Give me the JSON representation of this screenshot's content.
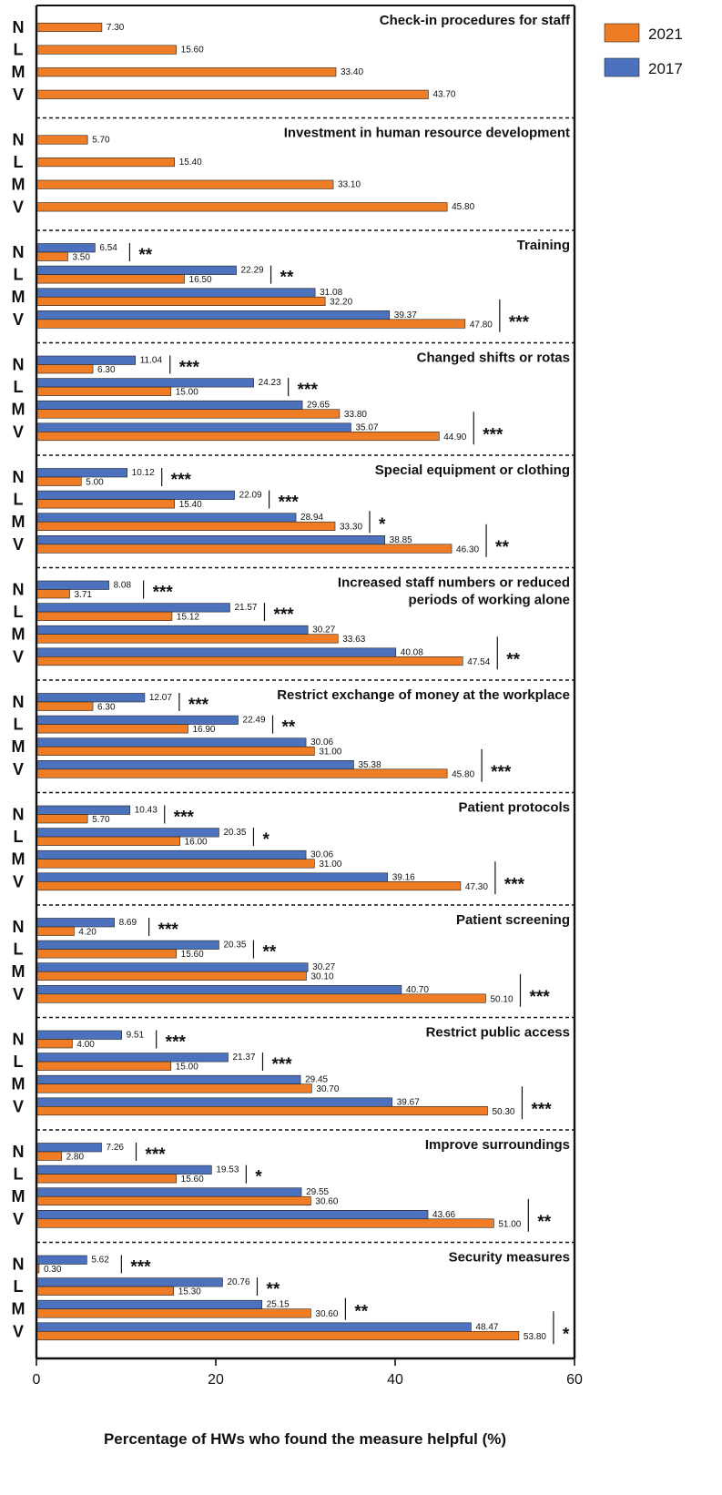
{
  "chart_data": {
    "type": "bar",
    "orientation": "horizontal",
    "xlabel": "Percentage of HWs who found the measure helpful (%)",
    "xlim": [
      0,
      60
    ],
    "xticks": [
      0,
      20,
      40,
      60
    ],
    "legend": [
      {
        "name": "2021",
        "color": "#ee7d26"
      },
      {
        "name": "2017",
        "color": "#4c72be"
      }
    ],
    "categories": [
      "N",
      "L",
      "M",
      "V"
    ],
    "panels": [
      {
        "title": [
          "Check-in procedures for staff"
        ],
        "v2021": [
          7.3,
          15.6,
          33.4,
          43.7
        ],
        "v2017": [
          null,
          null,
          null,
          null
        ],
        "sig": [
          "",
          "",
          "",
          ""
        ]
      },
      {
        "title": [
          "Investment in human resource development"
        ],
        "v2021": [
          5.7,
          15.4,
          33.1,
          45.8
        ],
        "v2017": [
          null,
          null,
          null,
          null
        ],
        "sig": [
          "",
          "",
          "",
          ""
        ]
      },
      {
        "title": [
          "Training"
        ],
        "v2021": [
          3.5,
          16.5,
          32.2,
          47.8
        ],
        "v2017": [
          6.54,
          22.29,
          31.08,
          39.37
        ],
        "sig": [
          "**",
          "**",
          "",
          "***"
        ]
      },
      {
        "title": [
          "Changed shifts or rotas"
        ],
        "v2021": [
          6.3,
          15.0,
          33.8,
          44.9
        ],
        "v2017": [
          11.04,
          24.23,
          29.65,
          35.07
        ],
        "sig": [
          "***",
          "***",
          "",
          "***"
        ]
      },
      {
        "title": [
          "Special equipment or clothing"
        ],
        "v2021": [
          5.0,
          15.4,
          33.3,
          46.3
        ],
        "v2017": [
          10.12,
          22.09,
          28.94,
          38.85
        ],
        "sig": [
          "***",
          "***",
          "*",
          "**"
        ]
      },
      {
        "title": [
          "Increased staff numbers or reduced",
          "periods of working alone"
        ],
        "v2021": [
          3.71,
          15.12,
          33.63,
          47.54
        ],
        "v2017": [
          8.08,
          21.57,
          30.27,
          40.08
        ],
        "sig": [
          "***",
          "***",
          "",
          "**"
        ]
      },
      {
        "title": [
          "Restrict exchange of money at the workplace"
        ],
        "v2021": [
          6.3,
          16.9,
          31.0,
          45.8
        ],
        "v2017": [
          12.07,
          22.49,
          30.06,
          35.38
        ],
        "sig": [
          "***",
          "**",
          "",
          "***"
        ]
      },
      {
        "title": [
          "Patient protocols"
        ],
        "v2021": [
          5.7,
          16.0,
          31.0,
          47.3
        ],
        "v2017": [
          10.43,
          20.35,
          30.06,
          39.16
        ],
        "sig": [
          "***",
          "*",
          "",
          "***"
        ]
      },
      {
        "title": [
          "Patient screening"
        ],
        "v2021": [
          4.2,
          15.6,
          30.1,
          50.1
        ],
        "v2017": [
          8.69,
          20.35,
          30.27,
          40.7
        ],
        "sig": [
          "***",
          "**",
          "",
          "***"
        ]
      },
      {
        "title": [
          "Restrict public access"
        ],
        "v2021": [
          4.0,
          15.0,
          30.7,
          50.3
        ],
        "v2017": [
          9.51,
          21.37,
          29.45,
          39.67
        ],
        "sig": [
          "***",
          "***",
          "",
          "***"
        ]
      },
      {
        "title": [
          "Improve surroundings"
        ],
        "v2021": [
          2.8,
          15.6,
          30.6,
          51.0
        ],
        "v2017": [
          7.26,
          19.53,
          29.55,
          43.66
        ],
        "sig": [
          "***",
          "*",
          "",
          "**"
        ]
      },
      {
        "title": [
          "Security measures"
        ],
        "v2021": [
          0.3,
          15.3,
          30.6,
          53.8
        ],
        "v2017": [
          5.62,
          20.76,
          25.15,
          48.47
        ],
        "sig": [
          "***",
          "**",
          "**",
          "*"
        ]
      }
    ]
  }
}
